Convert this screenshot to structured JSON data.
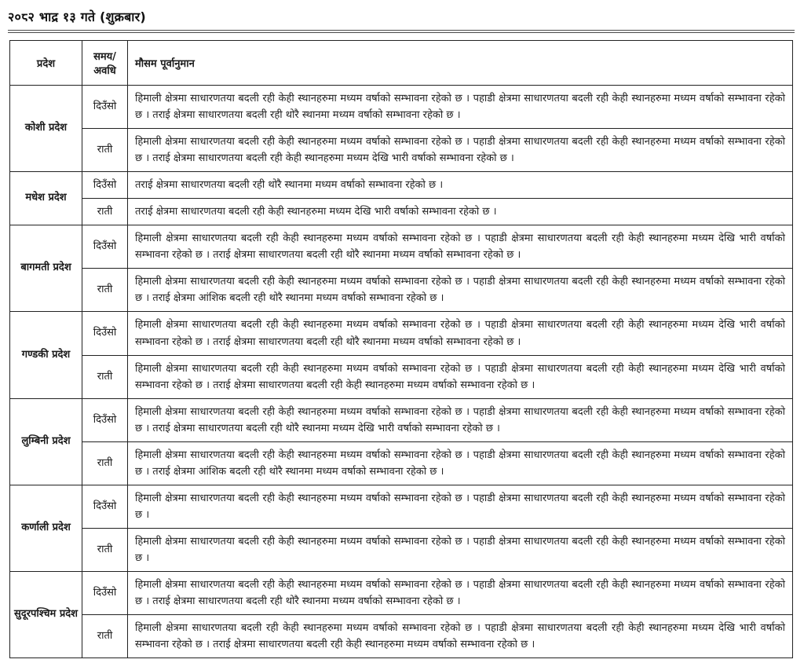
{
  "page": {
    "title": "२०८२ भाद्र १३ गते (शुक्रबार)"
  },
  "table": {
    "headers": {
      "province": "प्रदेश",
      "time": "समय/ अवधि",
      "forecast": "मौसम पूर्वानुमान"
    },
    "time_labels": {
      "day": "दिउँसो",
      "night": "राती"
    },
    "rows": [
      {
        "province": "कोशी प्रदेश",
        "day": "हिमाली क्षेत्रमा साधारणतया बदली रही केही स्थानहरुमा मध्यम वर्षाको सम्भावना रहेको छ । पहाडी क्षेत्रमा साधारणतया बदली रही केही स्थानहरुमा मध्यम वर्षाको सम्भावना रहेको छ । तराई क्षेत्रमा साधारणतया बदली रही थोरै स्थानमा मध्यम वर्षाको सम्भावना रहेको छ ।",
        "night": "हिमाली क्षेत्रमा साधारणतया बदली रही केही स्थानहरुमा मध्यम वर्षाको सम्भावना रहेको छ । पहाडी क्षेत्रमा साधारणतया बदली रही केही स्थानहरुमा मध्यम वर्षाको सम्भावना रहेको छ । तराई क्षेत्रमा साधारणतया बदली रही केही स्थानहरुमा मध्यम देखि भारी वर्षाको सम्भावना रहेको छ ।"
      },
      {
        "province": "मधेश प्रदेश",
        "day": "तराई क्षेत्रमा साधारणतया बदली रही थोरै स्थानमा मध्यम वर्षाको सम्भावना रहेको छ ।",
        "night": "तराई क्षेत्रमा साधारणतया बदली रही केही स्थानहरुमा मध्यम देखि भारी वर्षाको सम्भावना रहेको छ ।"
      },
      {
        "province": "बागमती प्रदेश",
        "day": "हिमाली क्षेत्रमा साधारणतया बदली रही केही स्थानहरुमा मध्यम वर्षाको सम्भावना रहेको छ । पहाडी क्षेत्रमा साधारणतया बदली रही केही स्थानहरुमा मध्यम देखि भारी वर्षाको सम्भावना रहेको छ । तराई क्षेत्रमा साधारणतया बदली रही थोरै स्थानमा मध्यम वर्षाको सम्भावना रहेको छ ।",
        "night": "हिमाली क्षेत्रमा साधारणतया बदली रही केही स्थानहरुमा मध्यम वर्षाको सम्भावना रहेको छ । पहाडी क्षेत्रमा साधारणतया बदली रही केही स्थानहरुमा मध्यम वर्षाको सम्भावना रहेको छ । तराई क्षेत्रमा आंशिक बदली रही थोरै स्थानमा मध्यम वर्षाको सम्भावना रहेको छ ।"
      },
      {
        "province": "गण्डकी प्रदेश",
        "day": "हिमाली क्षेत्रमा साधारणतया बदली रही केही स्थानहरुमा मध्यम वर्षाको सम्भावना रहेको छ । पहाडी क्षेत्रमा साधारणतया बदली रही केही स्थानहरुमा मध्यम देखि भारी वर्षाको सम्भावना रहेको छ । तराई क्षेत्रमा साधारणतया बदली रही थोरै स्थानमा मध्यम वर्षाको सम्भावना रहेको छ ।",
        "night": "हिमाली क्षेत्रमा साधारणतया बदली रही केही स्थानहरुमा मध्यम वर्षाको सम्भावना रहेको छ । पहाडी क्षेत्रमा साधारणतया बदली रही केही स्थानहरुमा मध्यम देखि भारी वर्षाको सम्भावना रहेको छ । तराई क्षेत्रमा साधारणतया बदली रही केही स्थानहरुमा मध्यम वर्षाको सम्भावना रहेको छ ।"
      },
      {
        "province": "लुम्बिनी प्रदेश",
        "day": "हिमाली क्षेत्रमा साधारणतया बदली रही केही स्थानहरुमा मध्यम वर्षाको सम्भावना रहेको छ । पहाडी क्षेत्रमा साधारणतया बदली रही केही स्थानहरुमा मध्यम वर्षाको सम्भावना रहेको छ । तराई क्षेत्रमा साधारणतया बदली रही थोरै स्थानमा मध्यम देखि भारी वर्षाको सम्भावना रहेको छ ।",
        "night": "हिमाली क्षेत्रमा साधारणतया बदली रही केही स्थानहरुमा मध्यम वर्षाको सम्भावना रहेको छ । पहाडी क्षेत्रमा साधारणतया बदली रही केही स्थानहरुमा मध्यम वर्षाको सम्भावना रहेको छ । तराई क्षेत्रमा आंशिक बदली रही थोरै स्थानमा मध्यम वर्षाको सम्भावना रहेको छ ।"
      },
      {
        "province": "कर्णाली प्रदेश",
        "day": "हिमाली क्षेत्रमा साधारणतया बदली रही केही स्थानहरुमा मध्यम वर्षाको सम्भावना रहेको छ । पहाडी क्षेत्रमा साधारणतया बदली रही केही स्थानहरुमा मध्यम वर्षाको सम्भावना रहेको छ ।",
        "night": "हिमाली क्षेत्रमा साधारणतया बदली रही केही स्थानहरुमा मध्यम वर्षाको सम्भावना रहेको छ । पहाडी क्षेत्रमा साधारणतया बदली रही केही स्थानहरुमा मध्यम वर्षाको सम्भावना रहेको छ ।"
      },
      {
        "province": "सुदूरपश्चिम प्रदेश",
        "day": "हिमाली क्षेत्रमा साधारणतया बदली रही केही स्थानहरुमा मध्यम वर्षाको सम्भावना रहेको छ । पहाडी क्षेत्रमा साधारणतया बदली रही केही स्थानहरुमा मध्यम वर्षाको सम्भावना रहेको छ । तराई क्षेत्रमा साधारणतया बदली रही थोरै स्थानमा मध्यम वर्षाको सम्भावना रहेको छ ।",
        "night": "हिमाली क्षेत्रमा साधारणतया बदली रही केही स्थानहरुमा मध्यम वर्षाको सम्भावना रहेको छ । पहाडी क्षेत्रमा साधारणतया बदली रही केही स्थानहरुमा मध्यम देखि भारी वर्षाको सम्भावना रहेको छ । तराई क्षेत्रमा साधारणतया बदली रही केही स्थानहरुमा मध्यम वर्षाको सम्भावना रहेको छ ।"
      }
    ]
  }
}
